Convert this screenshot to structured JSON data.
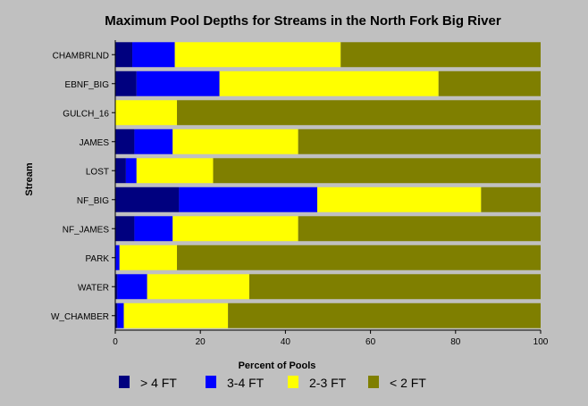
{
  "chart_data": {
    "type": "bar",
    "orientation": "horizontal",
    "stacked": true,
    "title": "Maximum Pool Depths for Streams in the North Fork Big River",
    "xlabel": "Percent of Pools",
    "ylabel": "Stream",
    "xlim": [
      0,
      100
    ],
    "xticks": [
      0,
      20,
      40,
      60,
      80,
      100
    ],
    "grid": false,
    "legend_position": "bottom",
    "categories": [
      "CHAMBRLND",
      "EBNF_BIG",
      "GULCH_16",
      "JAMES",
      "LOST",
      "NF_BIG",
      "NF_JAMES",
      "PARK",
      "WATER",
      "W_CHAMBER"
    ],
    "series": [
      {
        "name": "> 4 FT",
        "color": "#00007f",
        "values": [
          4,
          5,
          0,
          4.5,
          2.5,
          15,
          4.5,
          0,
          0.5,
          0.5
        ]
      },
      {
        "name": "3-4 FT",
        "color": "#0000ff",
        "values": [
          10,
          19.5,
          0,
          9,
          2.5,
          32.5,
          9,
          1,
          7,
          1.5
        ]
      },
      {
        "name": "2-3 FT",
        "color": "#ffff00",
        "values": [
          39,
          51.5,
          14.5,
          29.5,
          18,
          38.5,
          29.5,
          13.5,
          24,
          24.5
        ]
      },
      {
        "name": "< 2 FT",
        "color": "#7f7f00",
        "values": [
          47,
          24,
          85.5,
          57,
          77,
          14,
          57,
          85.5,
          68.5,
          73.5
        ]
      }
    ]
  }
}
